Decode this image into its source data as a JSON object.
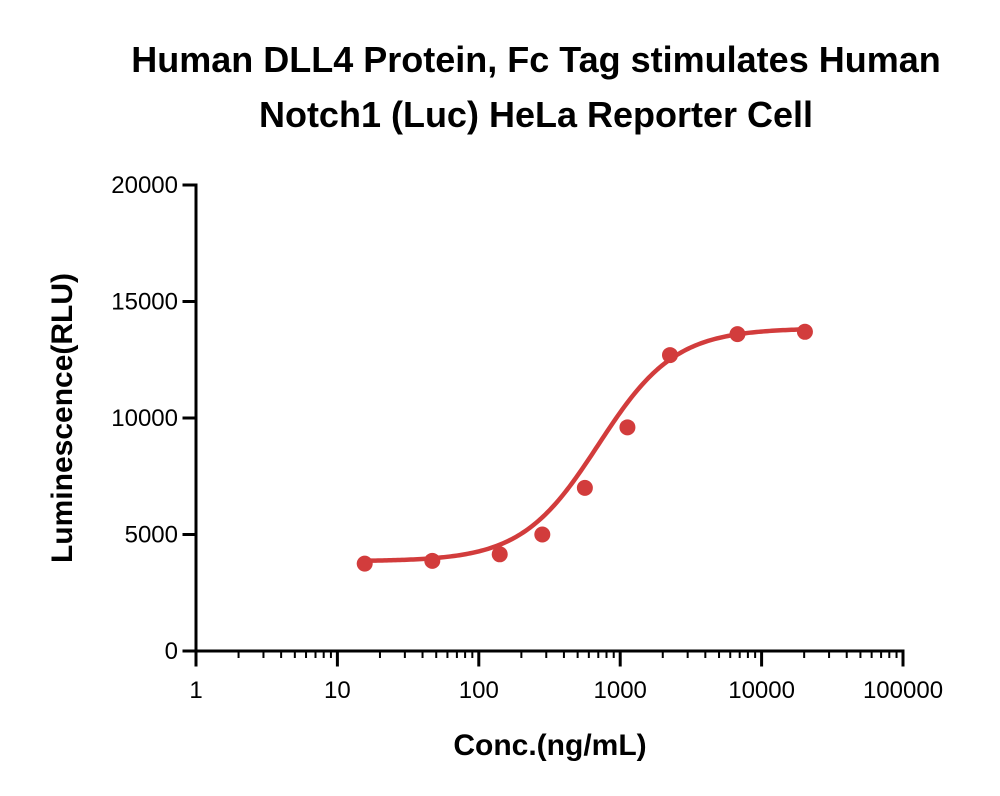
{
  "chart_data": {
    "type": "line",
    "title_lines": [
      "Human DLL4 Protein, Fc Tag stimulates Human",
      "Notch1 (Luc) HeLa Reporter Cell"
    ],
    "xlabel": "Conc.(ng/mL)",
    "ylabel": "Luminescence(RLU)",
    "x_scale": "log",
    "xlim": [
      1,
      100000
    ],
    "ylim": [
      0,
      20000
    ],
    "x_ticks": [
      1,
      10,
      100,
      1000,
      10000,
      100000
    ],
    "x_tick_labels": [
      "1",
      "10",
      "100",
      "1000",
      "10000",
      "100000"
    ],
    "y_ticks": [
      0,
      5000,
      10000,
      15000,
      20000
    ],
    "y_tick_labels": [
      "0",
      "5000",
      "10000",
      "15000",
      "20000"
    ],
    "series": [
      {
        "name": "Human DLL4 Protein, Fc Tag",
        "color": "#d23c3c",
        "x": [
          15.6,
          46.9,
          140.6,
          281.3,
          562.5,
          1125,
          2250,
          6750,
          20250
        ],
        "y": [
          3750,
          3870,
          4150,
          5000,
          7000,
          9600,
          12700,
          13600,
          13700
        ]
      }
    ],
    "fit": {
      "model": "4PL",
      "bottom": 3850,
      "top": 13850,
      "ec50": 700,
      "hill": 1.6
    },
    "grid": false,
    "legend": "none"
  }
}
